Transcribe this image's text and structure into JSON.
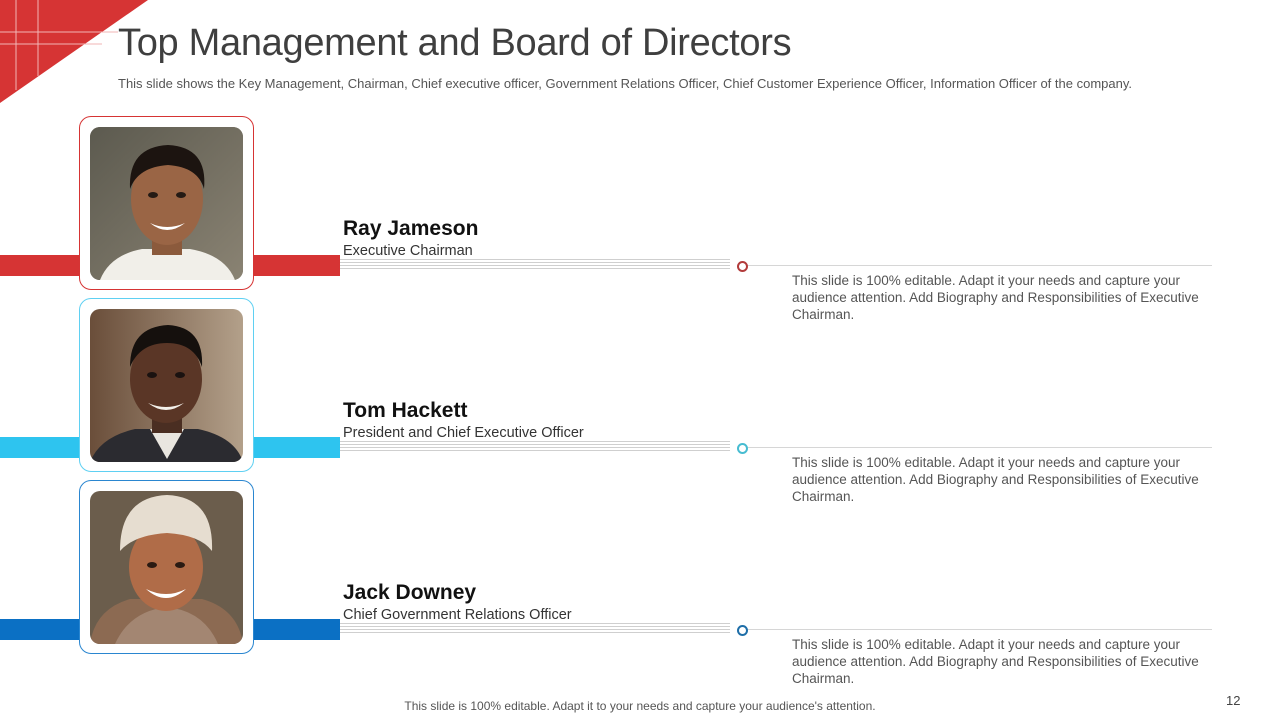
{
  "title": "Top Management and Board of Directors",
  "subtitle": "This slide shows the Key Management, Chairman, Chief executive officer, Government Relations Officer, Chief Customer Experience Officer, Information Officer of the company.",
  "people": [
    {
      "name": "Ray Jameson",
      "role": "Executive Chairman",
      "bio": "This slide is 100% editable. Adapt it your needs and capture your audience attention. Add Biography and Responsibilities of Executive Chairman.",
      "accent": "#d63434",
      "frame_color": "#d63434",
      "dot_color": "#b23b3b"
    },
    {
      "name": "Tom Hackett",
      "role": "President and Chief Executive Officer",
      "bio": "This slide is 100% editable. Adapt it your needs and capture your audience attention. Add Biography and Responsibilities of Executive Chairman.",
      "accent": "#2ec4ef",
      "frame_color": "#5fd0f2",
      "dot_color": "#47bcd1"
    },
    {
      "name": "Jack Downey",
      "role": "Chief Government Relations Officer",
      "bio": "This slide is 100% editable. Adapt it your needs and capture your audience attention. Add Biography and Responsibilities of Executive Chairman.",
      "accent": "#0b70c4",
      "frame_color": "#2a86d0",
      "dot_color": "#1e6ea8"
    }
  ],
  "footer": "This slide is 100% editable. Adapt it to your needs and capture your audience's attention.",
  "page_number": "12"
}
